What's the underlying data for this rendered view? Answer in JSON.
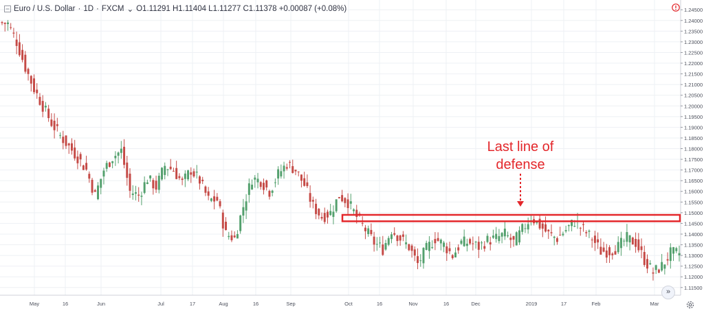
{
  "header": {
    "symbol": "Euro / U.S. Dollar",
    "interval": "1D",
    "broker": "FXCM",
    "ohlc": "O1.11291  H1.11404  L1.11277  C1.11378  +0.00087 (+0.08%)"
  },
  "colors": {
    "up": "#53a06d",
    "down": "#c54a46",
    "grid": "#eef0f4",
    "annotation": "#e3262a"
  },
  "chart_data": {
    "type": "candlestick",
    "y_axis": {
      "min": 1.113,
      "max": 1.247,
      "ticks": [
        "1.24500",
        "1.24000",
        "1.23500",
        "1.23000",
        "1.22500",
        "1.22000",
        "1.21500",
        "1.21000",
        "1.20500",
        "1.20000",
        "1.19500",
        "1.19000",
        "1.18500",
        "1.18000",
        "1.17500",
        "1.17000",
        "1.16500",
        "1.16000",
        "1.15500",
        "1.15000",
        "1.14500",
        "1.14000",
        "1.13500",
        "1.13000",
        "1.12500",
        "1.12000",
        "1.11500"
      ]
    },
    "x_axis": {
      "ticks": [
        "May",
        "16",
        "Jun",
        "Jul",
        "17",
        "Aug",
        "16",
        "Sep",
        "Oct",
        "16",
        "Nov",
        "16",
        "Dec",
        "2019",
        "17",
        "Feb",
        "Mar"
      ]
    },
    "price_path": [
      [
        0,
        1.239
      ],
      [
        3,
        1.2385
      ],
      [
        6,
        1.23
      ],
      [
        9,
        1.218
      ],
      [
        12,
        1.208
      ],
      [
        15,
        1.2
      ],
      [
        18,
        1.192
      ],
      [
        21,
        1.186
      ],
      [
        24,
        1.181
      ],
      [
        27,
        1.176
      ],
      [
        30,
        1.17
      ],
      [
        33,
        1.158
      ],
      [
        36,
        1.17
      ],
      [
        39,
        1.176
      ],
      [
        42,
        1.179
      ],
      [
        45,
        1.16
      ],
      [
        48,
        1.158
      ],
      [
        51,
        1.166
      ],
      [
        54,
        1.162
      ],
      [
        57,
        1.172
      ],
      [
        60,
        1.17
      ],
      [
        63,
        1.164
      ],
      [
        66,
        1.17
      ],
      [
        69,
        1.165
      ],
      [
        72,
        1.156
      ],
      [
        75,
        1.156
      ],
      [
        78,
        1.14
      ],
      [
        81,
        1.138
      ],
      [
        84,
        1.153
      ],
      [
        87,
        1.166
      ],
      [
        90,
        1.165
      ],
      [
        93,
        1.16
      ],
      [
        96,
        1.168
      ],
      [
        99,
        1.173
      ],
      [
        102,
        1.17
      ],
      [
        105,
        1.163
      ],
      [
        108,
        1.153
      ],
      [
        111,
        1.148
      ],
      [
        114,
        1.15
      ],
      [
        117,
        1.158
      ],
      [
        120,
        1.155
      ],
      [
        123,
        1.148
      ],
      [
        126,
        1.142
      ],
      [
        129,
        1.136
      ],
      [
        132,
        1.133
      ],
      [
        135,
        1.142
      ],
      [
        138,
        1.138
      ],
      [
        141,
        1.134
      ],
      [
        144,
        1.126
      ],
      [
        147,
        1.133
      ],
      [
        150,
        1.138
      ],
      [
        153,
        1.135
      ],
      [
        156,
        1.13
      ],
      [
        159,
        1.136
      ],
      [
        162,
        1.136
      ],
      [
        165,
        1.134
      ],
      [
        168,
        1.137
      ],
      [
        171,
        1.138
      ],
      [
        174,
        1.14
      ],
      [
        177,
        1.136
      ],
      [
        180,
        1.142
      ],
      [
        183,
        1.148
      ],
      [
        186,
        1.144
      ],
      [
        189,
        1.14
      ],
      [
        192,
        1.138
      ],
      [
        195,
        1.142
      ],
      [
        198,
        1.146
      ],
      [
        201,
        1.142
      ],
      [
        204,
        1.138
      ],
      [
        207,
        1.132
      ],
      [
        210,
        1.132
      ],
      [
        213,
        1.134
      ],
      [
        216,
        1.138
      ],
      [
        219,
        1.136
      ],
      [
        222,
        1.128
      ],
      [
        225,
        1.122
      ],
      [
        228,
        1.125
      ],
      [
        231,
        1.131
      ]
    ],
    "annotation": {
      "text_line1": "Last line of",
      "text_line2": "defense",
      "zone_low": 1.146,
      "zone_high": 1.149
    }
  }
}
